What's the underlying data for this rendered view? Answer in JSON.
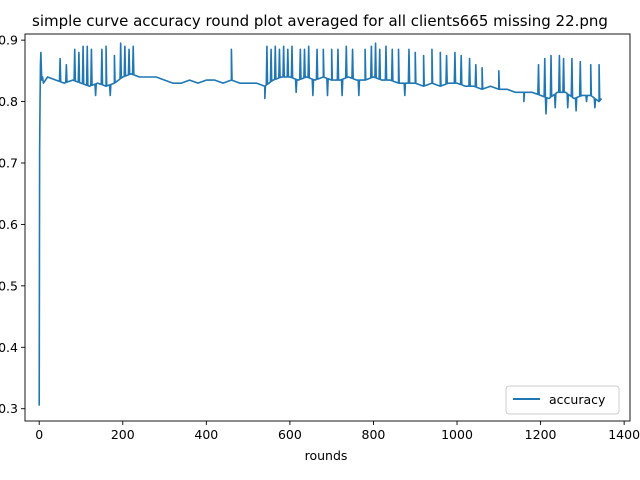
{
  "chart_data": {
    "type": "line",
    "title": "simple curve accuracy round plot averaged for all clients665 missing 22.png",
    "xlabel": "rounds",
    "ylabel": "",
    "xlim": [
      -34,
      1414
    ],
    "ylim": [
      0.28,
      0.91
    ],
    "xticks": [
      0,
      200,
      400,
      600,
      800,
      1000,
      1200,
      1400
    ],
    "xtick_labels": [
      "0",
      "200",
      "400",
      "600",
      "800",
      "1000",
      "1200",
      "1400"
    ],
    "yticks": [
      0.3,
      0.4,
      0.5,
      0.6,
      0.7,
      0.8,
      0.9
    ],
    "ytick_labels": [
      "0.3",
      "0.4",
      "0.5",
      "0.6",
      "0.7",
      "0.8",
      "0.9"
    ],
    "grid": false,
    "legend": {
      "position": "lower right",
      "entries": [
        "accuracy"
      ]
    },
    "series": [
      {
        "name": "accuracy",
        "color": "#1f77b4",
        "x": [
          0,
          1,
          2,
          3,
          4,
          6,
          8,
          10,
          20,
          40,
          60,
          80,
          100,
          120,
          140,
          160,
          180,
          200,
          220,
          240,
          260,
          280,
          300,
          320,
          340,
          360,
          380,
          400,
          420,
          440,
          460,
          480,
          500,
          520,
          540,
          560,
          580,
          600,
          620,
          640,
          660,
          680,
          700,
          720,
          740,
          760,
          780,
          800,
          820,
          840,
          860,
          880,
          900,
          920,
          940,
          960,
          980,
          1000,
          1020,
          1040,
          1060,
          1080,
          1100,
          1120,
          1140,
          1160,
          1180,
          1200,
          1220,
          1240,
          1260,
          1280,
          1300,
          1320,
          1340,
          1346
        ],
        "values": [
          0.305,
          0.72,
          0.8,
          0.86,
          0.88,
          0.835,
          0.84,
          0.83,
          0.84,
          0.835,
          0.83,
          0.835,
          0.83,
          0.825,
          0.83,
          0.825,
          0.83,
          0.84,
          0.845,
          0.84,
          0.84,
          0.84,
          0.835,
          0.83,
          0.83,
          0.835,
          0.83,
          0.835,
          0.835,
          0.83,
          0.835,
          0.83,
          0.83,
          0.83,
          0.825,
          0.835,
          0.84,
          0.84,
          0.835,
          0.84,
          0.835,
          0.84,
          0.835,
          0.835,
          0.84,
          0.835,
          0.835,
          0.84,
          0.835,
          0.835,
          0.83,
          0.83,
          0.83,
          0.825,
          0.83,
          0.825,
          0.83,
          0.83,
          0.825,
          0.825,
          0.82,
          0.825,
          0.82,
          0.82,
          0.815,
          0.815,
          0.815,
          0.81,
          0.805,
          0.815,
          0.815,
          0.805,
          0.81,
          0.81,
          0.8,
          0.805
        ],
        "spikes": [
          {
            "x": 50,
            "y": 0.87
          },
          {
            "x": 65,
            "y": 0.86
          },
          {
            "x": 85,
            "y": 0.885
          },
          {
            "x": 95,
            "y": 0.88
          },
          {
            "x": 105,
            "y": 0.89
          },
          {
            "x": 115,
            "y": 0.89
          },
          {
            "x": 125,
            "y": 0.885
          },
          {
            "x": 135,
            "y": 0.81
          },
          {
            "x": 150,
            "y": 0.885
          },
          {
            "x": 160,
            "y": 0.89
          },
          {
            "x": 170,
            "y": 0.81
          },
          {
            "x": 180,
            "y": 0.875
          },
          {
            "x": 195,
            "y": 0.895
          },
          {
            "x": 205,
            "y": 0.89
          },
          {
            "x": 215,
            "y": 0.885
          },
          {
            "x": 225,
            "y": 0.89
          },
          {
            "x": 460,
            "y": 0.885
          },
          {
            "x": 540,
            "y": 0.805
          },
          {
            "x": 545,
            "y": 0.89
          },
          {
            "x": 555,
            "y": 0.885
          },
          {
            "x": 565,
            "y": 0.89
          },
          {
            "x": 575,
            "y": 0.885
          },
          {
            "x": 585,
            "y": 0.89
          },
          {
            "x": 595,
            "y": 0.885
          },
          {
            "x": 605,
            "y": 0.89
          },
          {
            "x": 615,
            "y": 0.815
          },
          {
            "x": 625,
            "y": 0.885
          },
          {
            "x": 635,
            "y": 0.885
          },
          {
            "x": 645,
            "y": 0.89
          },
          {
            "x": 655,
            "y": 0.81
          },
          {
            "x": 665,
            "y": 0.885
          },
          {
            "x": 680,
            "y": 0.885
          },
          {
            "x": 690,
            "y": 0.81
          },
          {
            "x": 700,
            "y": 0.885
          },
          {
            "x": 715,
            "y": 0.885
          },
          {
            "x": 725,
            "y": 0.81
          },
          {
            "x": 735,
            "y": 0.89
          },
          {
            "x": 750,
            "y": 0.885
          },
          {
            "x": 765,
            "y": 0.81
          },
          {
            "x": 780,
            "y": 0.885
          },
          {
            "x": 795,
            "y": 0.89
          },
          {
            "x": 805,
            "y": 0.895
          },
          {
            "x": 815,
            "y": 0.885
          },
          {
            "x": 830,
            "y": 0.89
          },
          {
            "x": 845,
            "y": 0.885
          },
          {
            "x": 860,
            "y": 0.885
          },
          {
            "x": 875,
            "y": 0.81
          },
          {
            "x": 885,
            "y": 0.885
          },
          {
            "x": 900,
            "y": 0.88
          },
          {
            "x": 920,
            "y": 0.875
          },
          {
            "x": 940,
            "y": 0.885
          },
          {
            "x": 960,
            "y": 0.88
          },
          {
            "x": 975,
            "y": 0.875
          },
          {
            "x": 995,
            "y": 0.88
          },
          {
            "x": 1010,
            "y": 0.875
          },
          {
            "x": 1030,
            "y": 0.87
          },
          {
            "x": 1045,
            "y": 0.86
          },
          {
            "x": 1060,
            "y": 0.855
          },
          {
            "x": 1100,
            "y": 0.85
          },
          {
            "x": 1160,
            "y": 0.8
          },
          {
            "x": 1195,
            "y": 0.86
          },
          {
            "x": 1210,
            "y": 0.87
          },
          {
            "x": 1213,
            "y": 0.78
          },
          {
            "x": 1225,
            "y": 0.875
          },
          {
            "x": 1235,
            "y": 0.79
          },
          {
            "x": 1245,
            "y": 0.875
          },
          {
            "x": 1255,
            "y": 0.87
          },
          {
            "x": 1265,
            "y": 0.79
          },
          {
            "x": 1275,
            "y": 0.87
          },
          {
            "x": 1285,
            "y": 0.785
          },
          {
            "x": 1295,
            "y": 0.865
          },
          {
            "x": 1310,
            "y": 0.8
          },
          {
            "x": 1320,
            "y": 0.86
          },
          {
            "x": 1330,
            "y": 0.79
          },
          {
            "x": 1340,
            "y": 0.86
          }
        ]
      }
    ]
  }
}
